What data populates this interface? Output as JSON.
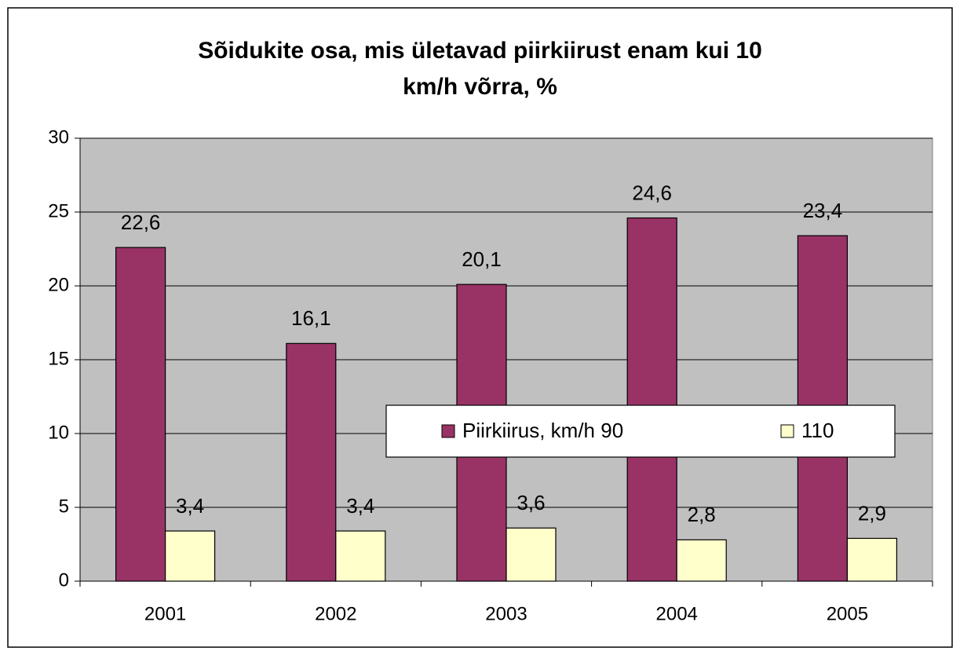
{
  "chart_data": {
    "type": "bar",
    "title": "Sõidukite osa, mis ületavad piirkiirust enam kui 10 km/h võrra, %",
    "categories": [
      "2001",
      "2002",
      "2003",
      "2004",
      "2005"
    ],
    "series": [
      {
        "name": "Piirkiirus, km/h 90",
        "color": "#993366",
        "values": [
          22.6,
          16.1,
          20.1,
          24.6,
          23.4
        ],
        "value_labels": [
          "22,6",
          "16,1",
          "20,1",
          "24,6",
          "23,4"
        ]
      },
      {
        "name": "110",
        "color": "#ffffcc",
        "values": [
          3.4,
          3.4,
          3.6,
          2.8,
          2.9
        ],
        "value_labels": [
          "3,4",
          "3,4",
          "3,6",
          "2,8",
          "2,9"
        ]
      }
    ],
    "ylim": [
      0,
      30
    ],
    "yticks": [
      0,
      5,
      10,
      15,
      20,
      25,
      30
    ],
    "grid": true,
    "plot_background": "#c0c0c0",
    "legend": "center-right"
  }
}
